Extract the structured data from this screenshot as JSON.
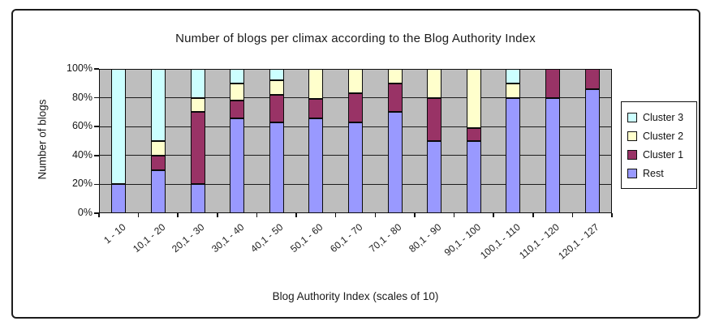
{
  "chart_data": {
    "type": "bar",
    "variant": "stacked-100-percent-column",
    "title": "Number of blogs per climax according to the Blog Authority Index",
    "xlabel": "Blog Authority Index (scales of 10)",
    "ylabel": "Number of blogs",
    "categories": [
      "1 - 10",
      "10,1 - 20",
      "20,1 - 30",
      "30,1 - 40",
      "40,1 - 50",
      "50,1 - 60",
      "60,1 - 70",
      "70,1 - 80",
      "80,1 - 90",
      "90,1 - 100",
      "100,1 - 110",
      "110,1 - 120",
      "120,1 - 127"
    ],
    "series": [
      {
        "name": "Rest",
        "color": "#9999FF",
        "values": [
          20,
          30,
          20,
          66,
          63,
          66,
          63,
          70,
          50,
          50,
          80,
          80,
          86
        ]
      },
      {
        "name": "Cluster 1",
        "color": "#993366",
        "values": [
          0,
          10,
          50,
          12,
          19,
          13,
          20,
          20,
          30,
          9,
          0,
          20,
          14
        ]
      },
      {
        "name": "Cluster 2",
        "color": "#FFFFCC",
        "values": [
          0,
          10,
          10,
          12,
          10,
          21,
          17,
          10,
          20,
          41,
          10,
          0,
          0
        ]
      },
      {
        "name": "Cluster 3",
        "color": "#CCFFFF",
        "values": [
          80,
          50,
          20,
          10,
          8,
          0,
          0,
          0,
          0,
          0,
          10,
          0,
          0
        ]
      }
    ],
    "stack_order_bottom_to_top": [
      "Rest",
      "Cluster 1",
      "Cluster 2",
      "Cluster 3"
    ],
    "y_axis": {
      "min": 0,
      "max": 100,
      "unit": "%",
      "tick_labels": [
        "0%",
        "20%",
        "40%",
        "60%",
        "80%",
        "100%"
      ],
      "gridlines_at": [
        20,
        40,
        60,
        80
      ]
    },
    "legend": {
      "position": "right",
      "entries_top_to_bottom": [
        "Cluster 3",
        "Cluster 2",
        "Cluster 1",
        "Rest"
      ]
    },
    "grid": true,
    "colors": {
      "plot_background": "#BEBEBE",
      "axis_and_borders": "#111111",
      "text": "#1A1A1A",
      "frame_border": "#1C1C1C"
    }
  }
}
